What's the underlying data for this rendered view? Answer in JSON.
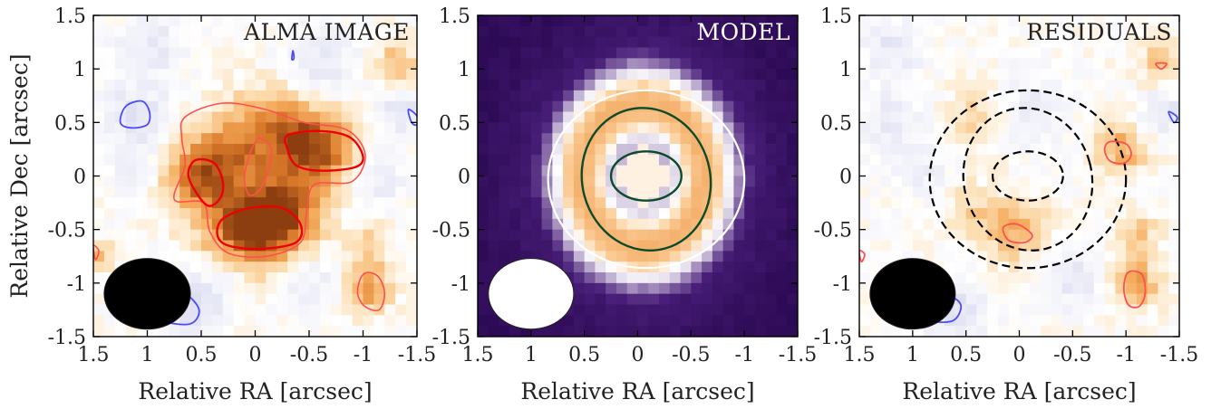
{
  "chart_data": [
    {
      "type": "heatmap",
      "title": "ALMA IMAGE",
      "xlabel": "Relative RA [arcsec]",
      "ylabel": "Relative Dec [arcsec]",
      "xlim": [
        1.5,
        -1.5
      ],
      "ylim": [
        -1.5,
        1.5
      ],
      "xticks": [
        "1.5",
        "1",
        "0.5",
        "0",
        "-0.5",
        "-1",
        "-1.5"
      ],
      "yticks": [
        "-1.5",
        "-1",
        "-0.5",
        "0",
        "0.5",
        "1",
        "1.5"
      ],
      "colormap": "diverging blue-white-orange",
      "blobs": [
        {
          "x": 0.55,
          "y": 0.0,
          "amp": 0.7,
          "s": 0.22
        },
        {
          "x": 0.25,
          "y": 0.25,
          "amp": 0.45,
          "s": 0.25
        },
        {
          "x": -0.6,
          "y": 0.25,
          "amp": 0.8,
          "s": 0.25
        },
        {
          "x": -0.2,
          "y": 0.45,
          "amp": 0.55,
          "s": 0.3
        },
        {
          "x": 0.05,
          "y": -0.5,
          "amp": 1.0,
          "s": 0.3
        },
        {
          "x": -0.3,
          "y": -0.35,
          "amp": 0.6,
          "s": 0.25
        },
        {
          "x": -1.05,
          "y": -1.05,
          "amp": 0.6,
          "s": 0.15
        },
        {
          "x": -1.05,
          "y": -0.65,
          "amp": 0.35,
          "s": 0.15
        },
        {
          "x": -1.3,
          "y": 1.05,
          "amp": 0.4,
          "s": 0.15
        },
        {
          "x": 1.45,
          "y": -0.75,
          "amp": 0.45,
          "s": 0.1
        },
        {
          "x": 1.1,
          "y": 0.6,
          "amp": -0.35,
          "s": 0.2
        },
        {
          "x": 0.95,
          "y": 1.2,
          "amp": -0.3,
          "s": 0.2
        },
        {
          "x": 0.6,
          "y": -1.2,
          "amp": -0.4,
          "s": 0.2
        },
        {
          "x": 0.25,
          "y": -0.95,
          "amp": -0.25,
          "s": 0.2
        },
        {
          "x": -0.45,
          "y": -1.0,
          "amp": -0.3,
          "s": 0.2
        },
        {
          "x": -0.6,
          "y": 1.0,
          "amp": -0.3,
          "s": 0.25
        },
        {
          "x": -1.35,
          "y": 0.6,
          "amp": -0.35,
          "s": 0.15
        },
        {
          "x": 1.1,
          "y": 0.15,
          "amp": -0.2,
          "s": 0.2
        },
        {
          "x": -1.1,
          "y": -0.05,
          "amp": -0.25,
          "s": 0.2
        }
      ],
      "contours": [
        {
          "color": "#ff5050",
          "width": 1.6,
          "points": [
            [
              0.65,
              0.55
            ],
            [
              0.3,
              0.68
            ],
            [
              -0.1,
              0.62
            ],
            [
              -0.45,
              0.5
            ],
            [
              -0.85,
              0.43
            ],
            [
              -1.02,
              0.2
            ],
            [
              -0.9,
              -0.05
            ],
            [
              -0.55,
              -0.08
            ],
            [
              -0.48,
              -0.32
            ],
            [
              -0.42,
              -0.62
            ],
            [
              -0.1,
              -0.75
            ],
            [
              0.25,
              -0.72
            ],
            [
              0.42,
              -0.52
            ],
            [
              0.48,
              -0.25
            ],
            [
              0.75,
              -0.22
            ],
            [
              0.65,
              0.1
            ],
            [
              0.68,
              0.35
            ]
          ]
        },
        {
          "color": "#ff5050",
          "width": 1.6,
          "points": [
            [
              -0.05,
              0.35
            ],
            [
              -0.15,
              0.25
            ],
            [
              -0.12,
              0.05
            ],
            [
              -0.05,
              -0.12
            ],
            [
              0.05,
              -0.18
            ],
            [
              0.1,
              -0.05
            ],
            [
              0.08,
              0.1
            ],
            [
              0.02,
              0.28
            ]
          ]
        },
        {
          "color": "#ee0000",
          "width": 2.4,
          "points": [
            [
              -0.3,
              0.38
            ],
            [
              -0.6,
              0.42
            ],
            [
              -0.88,
              0.36
            ],
            [
              -1.0,
              0.18
            ],
            [
              -0.92,
              0.08
            ],
            [
              -0.6,
              0.05
            ],
            [
              -0.38,
              0.1
            ],
            [
              -0.3,
              0.25
            ]
          ]
        },
        {
          "color": "#ee0000",
          "width": 2.4,
          "points": [
            [
              0.55,
              0.15
            ],
            [
              0.38,
              0.12
            ],
            [
              0.3,
              -0.05
            ],
            [
              0.32,
              -0.2
            ],
            [
              0.43,
              -0.28
            ],
            [
              0.55,
              -0.15
            ],
            [
              0.62,
              0.02
            ]
          ]
        },
        {
          "color": "#ee0000",
          "width": 2.4,
          "points": [
            [
              0.3,
              -0.4
            ],
            [
              0.05,
              -0.3
            ],
            [
              -0.25,
              -0.3
            ],
            [
              -0.42,
              -0.45
            ],
            [
              -0.38,
              -0.62
            ],
            [
              -0.05,
              -0.68
            ],
            [
              0.25,
              -0.65
            ],
            [
              0.35,
              -0.55
            ]
          ]
        },
        {
          "color": "#ff5050",
          "width": 1.6,
          "points": [
            [
              -1.05,
              -0.9
            ],
            [
              -1.15,
              -0.95
            ],
            [
              -1.2,
              -1.1
            ],
            [
              -1.15,
              -1.25
            ],
            [
              -1.02,
              -1.22
            ],
            [
              -0.95,
              -1.1
            ],
            [
              -0.98,
              -0.95
            ]
          ]
        },
        {
          "color": "#ff5050",
          "width": 1.6,
          "points": [
            [
              1.5,
              -0.65
            ],
            [
              1.45,
              -0.7
            ],
            [
              1.48,
              -0.78
            ]
          ]
        },
        {
          "color": "#4a4aff",
          "width": 1.8,
          "points": [
            [
              1.05,
              0.7
            ],
            [
              1.2,
              0.65
            ],
            [
              1.25,
              0.5
            ],
            [
              1.15,
              0.45
            ],
            [
              1.0,
              0.48
            ],
            [
              0.98,
              0.6
            ]
          ]
        },
        {
          "color": "#4a4aff",
          "width": 1.8,
          "points": [
            [
              0.65,
              -1.1
            ],
            [
              0.85,
              -1.08
            ],
            [
              0.92,
              -1.2
            ],
            [
              0.85,
              -1.35
            ],
            [
              0.6,
              -1.38
            ],
            [
              0.52,
              -1.25
            ]
          ]
        },
        {
          "color": "#4a4aff",
          "width": 1.8,
          "points": [
            [
              -1.42,
              0.62
            ],
            [
              -1.5,
              0.56
            ],
            [
              -1.5,
              0.48
            ],
            [
              -1.45,
              0.5
            ]
          ]
        },
        {
          "color": "#4a4aff",
          "width": 1.8,
          "points": [
            [
              -0.35,
              1.17
            ],
            [
              -0.36,
              1.1
            ],
            [
              -0.34,
              1.09
            ]
          ]
        }
      ],
      "beam": {
        "x": 1.0,
        "y": -1.1,
        "rx": 0.4,
        "ry": 0.33,
        "color": "#000000"
      }
    },
    {
      "type": "heatmap",
      "title": "MODEL",
      "xlabel": "Relative RA [arcsec]",
      "ylabel": "",
      "xlim": [
        1.5,
        -1.5
      ],
      "ylim": [
        -1.5,
        1.5
      ],
      "xticks": [
        "1.5",
        "1",
        "0.5",
        "0",
        "-0.5",
        "-1",
        "-1.5"
      ],
      "yticks": [
        "-1.5",
        "-1",
        "-0.5",
        "0",
        "0.5",
        "1",
        "1.5"
      ],
      "colormap": "dark purple to white to orange",
      "ring": {
        "x": -0.05,
        "y": 0.0,
        "r": 0.55,
        "w": 0.22,
        "dip": 0.35
      },
      "contours": [
        {
          "color": "#ffffff",
          "width": 2.2,
          "ellipse": {
            "cx": -0.08,
            "cy": -0.03,
            "rx": 0.92,
            "ry": 0.83,
            "rot": 0
          }
        },
        {
          "color": "#0b4b2a",
          "width": 2.4,
          "ellipse": {
            "cx": -0.08,
            "cy": -0.03,
            "rx": 0.6,
            "ry": 0.67,
            "rot": -15
          }
        },
        {
          "color": "#0b4b2a",
          "width": 2.4,
          "ellipse": {
            "cx": -0.08,
            "cy": 0.0,
            "rx": 0.33,
            "ry": 0.23,
            "rot": 0
          }
        }
      ],
      "beam": {
        "x": 1.0,
        "y": -1.1,
        "rx": 0.4,
        "ry": 0.33,
        "color": "#ffffff"
      }
    },
    {
      "type": "heatmap",
      "title": "RESIDUALS",
      "xlabel": "Relative RA [arcsec]",
      "ylabel": "",
      "xlim": [
        1.5,
        -1.5
      ],
      "ylim": [
        -1.5,
        1.5
      ],
      "xticks": [
        "1.5",
        "1",
        "0.5",
        "0",
        "-0.5",
        "-1",
        "-1.5"
      ],
      "yticks": [
        "-1.5",
        "-1",
        "-0.5",
        "0",
        "0.5",
        "1",
        "1.5"
      ],
      "colormap": "diverging blue-white-orange",
      "blobs": [
        {
          "x": -0.95,
          "y": 0.25,
          "amp": 0.5,
          "s": 0.18
        },
        {
          "x": 0.05,
          "y": -0.5,
          "amp": 0.45,
          "s": 0.22
        },
        {
          "x": -1.1,
          "y": -1.0,
          "amp": 0.6,
          "s": 0.15
        },
        {
          "x": -1.1,
          "y": -0.55,
          "amp": 0.35,
          "s": 0.15
        },
        {
          "x": -1.35,
          "y": 1.05,
          "amp": 0.4,
          "s": 0.15
        },
        {
          "x": 0.35,
          "y": 0.55,
          "amp": 0.3,
          "s": 0.2
        },
        {
          "x": 0.5,
          "y": -0.3,
          "amp": 0.25,
          "s": 0.2
        },
        {
          "x": -0.1,
          "y": 0.6,
          "amp": -0.25,
          "s": 0.25
        },
        {
          "x": 0.6,
          "y": -1.25,
          "amp": -0.4,
          "s": 0.2
        },
        {
          "x": -0.5,
          "y": -0.95,
          "amp": -0.3,
          "s": 0.2
        },
        {
          "x": -1.35,
          "y": 0.6,
          "amp": -0.35,
          "s": 0.15
        },
        {
          "x": 1.2,
          "y": 0.5,
          "amp": -0.3,
          "s": 0.2
        },
        {
          "x": 1.2,
          "y": 1.2,
          "amp": -0.3,
          "s": 0.2
        },
        {
          "x": 0.85,
          "y": 0.0,
          "amp": -0.2,
          "s": 0.2
        }
      ],
      "contours": [
        {
          "color": "#000000",
          "width": 2.2,
          "dash": true,
          "ellipse": {
            "cx": -0.08,
            "cy": -0.03,
            "rx": 0.92,
            "ry": 0.83,
            "rot": 0
          }
        },
        {
          "color": "#000000",
          "width": 2.2,
          "dash": true,
          "ellipse": {
            "cx": -0.08,
            "cy": -0.03,
            "rx": 0.6,
            "ry": 0.67,
            "rot": -15
          }
        },
        {
          "color": "#000000",
          "width": 2.2,
          "dash": true,
          "ellipse": {
            "cx": -0.08,
            "cy": 0.0,
            "rx": 0.33,
            "ry": 0.23,
            "rot": 0
          }
        },
        {
          "color": "#ff5050",
          "width": 1.8,
          "points": [
            [
              -0.85,
              0.32
            ],
            [
              -1.0,
              0.3
            ],
            [
              -1.05,
              0.2
            ],
            [
              -0.98,
              0.12
            ],
            [
              -0.85,
              0.14
            ],
            [
              -0.8,
              0.25
            ]
          ]
        },
        {
          "color": "#ff5050",
          "width": 1.8,
          "points": [
            [
              0.15,
              -0.48
            ],
            [
              0.02,
              -0.45
            ],
            [
              -0.12,
              -0.55
            ],
            [
              -0.05,
              -0.62
            ],
            [
              0.1,
              -0.6
            ]
          ]
        },
        {
          "color": "#ff5050",
          "width": 1.8,
          "points": [
            [
              -1.02,
              -0.9
            ],
            [
              -1.15,
              -0.92
            ],
            [
              -1.18,
              -1.1
            ],
            [
              -1.12,
              -1.22
            ],
            [
              -1.02,
              -1.2
            ],
            [
              -0.98,
              -1.05
            ]
          ]
        },
        {
          "color": "#ff5050",
          "width": 1.8,
          "points": [
            [
              -1.28,
              1.05
            ],
            [
              -1.38,
              1.05
            ],
            [
              -1.33,
              1.0
            ]
          ]
        },
        {
          "color": "#ff5050",
          "width": 1.8,
          "points": [
            [
              1.5,
              -0.7
            ],
            [
              1.45,
              -0.73
            ],
            [
              1.48,
              -0.8
            ]
          ]
        },
        {
          "color": "#4a4aff",
          "width": 1.8,
          "points": [
            [
              0.7,
              -1.1
            ],
            [
              0.9,
              -1.12
            ],
            [
              0.95,
              -1.25
            ],
            [
              0.85,
              -1.35
            ],
            [
              0.62,
              -1.35
            ],
            [
              0.55,
              -1.2
            ]
          ]
        },
        {
          "color": "#4a4aff",
          "width": 1.8,
          "points": [
            [
              -1.4,
              0.6
            ],
            [
              -1.48,
              0.55
            ],
            [
              -1.45,
              0.5
            ]
          ]
        }
      ],
      "beam": {
        "x": 1.0,
        "y": -1.1,
        "rx": 0.4,
        "ry": 0.33,
        "color": "#000000"
      }
    }
  ]
}
